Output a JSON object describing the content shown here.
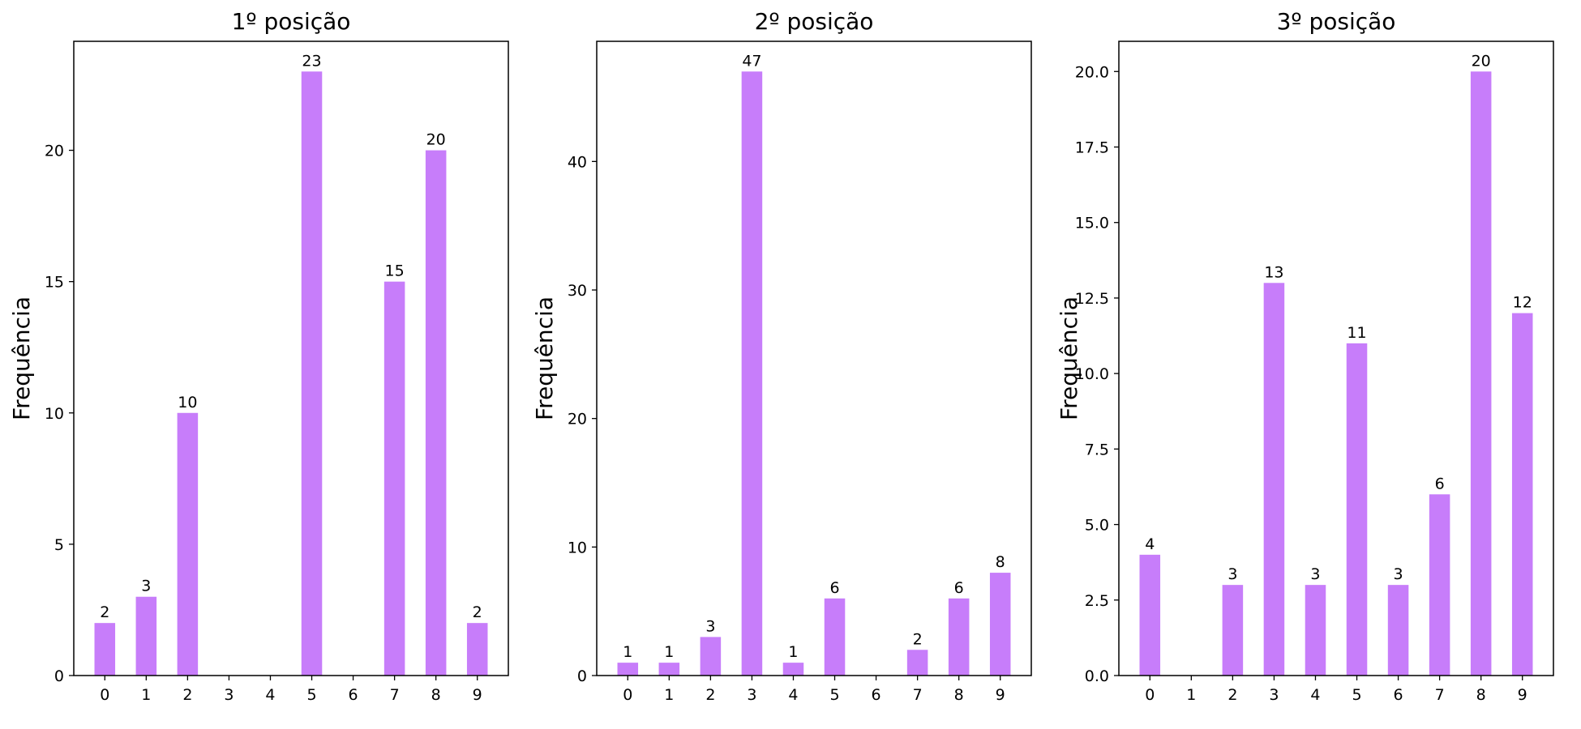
{
  "chart_data": [
    {
      "type": "bar",
      "title": "1º posição",
      "ylabel": "Frequência",
      "xlabel": "",
      "categories": [
        "0",
        "1",
        "2",
        "3",
        "4",
        "5",
        "6",
        "7",
        "8",
        "9"
      ],
      "values": [
        2,
        3,
        10,
        0,
        0,
        23,
        0,
        15,
        20,
        2
      ],
      "value_labels": [
        "2",
        "3",
        "10",
        "",
        "",
        "23",
        "",
        "15",
        "20",
        "2"
      ],
      "ylim": [
        0,
        24.15
      ],
      "yticks": [
        0,
        5,
        10,
        15,
        20
      ],
      "ytick_labels": [
        "0",
        "5",
        "10",
        "15",
        "20"
      ],
      "bar_color": "#c77dfa",
      "grid": false
    },
    {
      "type": "bar",
      "title": "2º posição",
      "ylabel": "Frequência",
      "xlabel": "",
      "categories": [
        "0",
        "1",
        "2",
        "3",
        "4",
        "5",
        "6",
        "7",
        "8",
        "9"
      ],
      "values": [
        1,
        1,
        3,
        47,
        1,
        6,
        0,
        2,
        6,
        8
      ],
      "value_labels": [
        "1",
        "1",
        "3",
        "47",
        "1",
        "6",
        "",
        "2",
        "6",
        "8"
      ],
      "ylim": [
        0,
        49.35
      ],
      "yticks": [
        0,
        10,
        20,
        30,
        40
      ],
      "ytick_labels": [
        "0",
        "10",
        "20",
        "30",
        "40"
      ],
      "bar_color": "#c77dfa",
      "grid": false
    },
    {
      "type": "bar",
      "title": "3º posição",
      "ylabel": "Frequência",
      "xlabel": "",
      "categories": [
        "0",
        "1",
        "2",
        "3",
        "4",
        "5",
        "6",
        "7",
        "8",
        "9"
      ],
      "values": [
        4,
        0,
        3,
        13,
        3,
        11,
        3,
        6,
        20,
        12
      ],
      "value_labels": [
        "4",
        "",
        "3",
        "13",
        "3",
        "11",
        "3",
        "6",
        "20",
        "12"
      ],
      "ylim": [
        0,
        21
      ],
      "yticks": [
        0,
        2.5,
        5,
        7.5,
        10,
        12.5,
        15,
        17.5,
        20
      ],
      "ytick_labels": [
        "0.0",
        "2.5",
        "5.0",
        "7.5",
        "10.0",
        "12.5",
        "15.0",
        "17.5",
        "20.0"
      ],
      "bar_color": "#c77dfa",
      "grid": false
    }
  ]
}
